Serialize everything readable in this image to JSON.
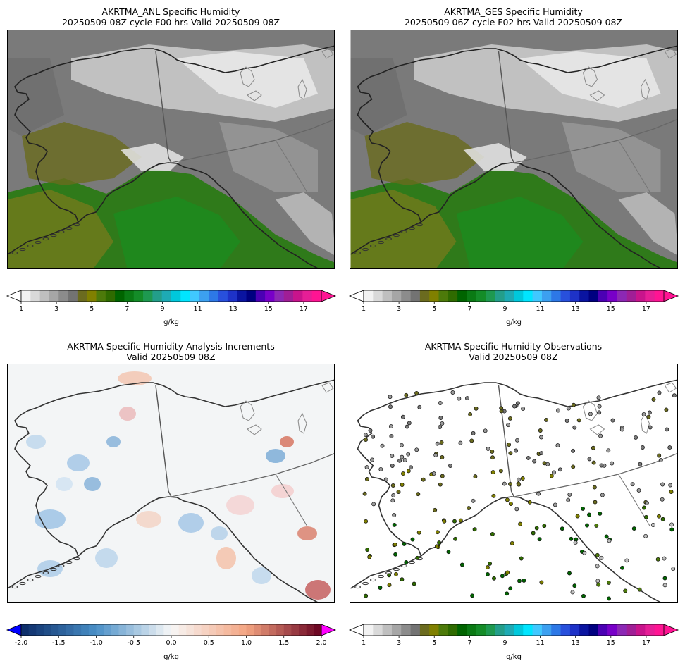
{
  "panels": [
    {
      "id": "anl",
      "title_line1": "AKRTMA_ANL Specific Humidity",
      "title_line2": "20250509 08Z cycle F00 hrs Valid 20250509 08Z",
      "kind": "filled-humidity"
    },
    {
      "id": "ges",
      "title_line1": "AKRTMA_GES Specific Humidity",
      "title_line2": "20250509 06Z cycle F02 hrs Valid 20250509 08Z",
      "kind": "filled-humidity"
    },
    {
      "id": "inc",
      "title_line1": "AKRTMA Specific Humidity Analysis Increments",
      "title_line2": "Valid 20250509 08Z",
      "kind": "increments"
    },
    {
      "id": "obs",
      "title_line1": "AKRTMA Specific Humidity Observations",
      "title_line2": "Valid 20250509 08Z",
      "kind": "observations"
    }
  ],
  "colorbars": {
    "humidity": {
      "unit": "g/kg",
      "ticks": [
        "1",
        "3",
        "5",
        "7",
        "9",
        "11",
        "13",
        "15",
        "17"
      ],
      "colors": [
        "#f2f2f2",
        "#d9d9d9",
        "#bfbfbf",
        "#a6a6a6",
        "#8c8c8c",
        "#737373",
        "#6b6b1f",
        "#808000",
        "#4d7a0a",
        "#2f6b00",
        "#006400",
        "#0a7a14",
        "#148c28",
        "#1e9950",
        "#239e8a",
        "#1eaab4",
        "#00c8dc",
        "#00e5ff",
        "#40c8ff",
        "#3ca0f0",
        "#2d78e6",
        "#2850dc",
        "#1e32c8",
        "#0a14a0",
        "#000080",
        "#4b00b4",
        "#7800c8",
        "#8c28b4",
        "#a01e96",
        "#c8148c",
        "#e61e96",
        "#ff1493"
      ],
      "extend_low": "#ffffff",
      "extend_high": "#ff1493"
    },
    "increments": {
      "unit": "g/kg",
      "ticks": [
        "-2.0",
        "-1.5",
        "-1.0",
        "-0.5",
        "0.0",
        "0.5",
        "1.0",
        "1.5",
        "2.0"
      ],
      "extend_low": "#0000ff",
      "extend_high": "#ff00ff"
    }
  }
}
